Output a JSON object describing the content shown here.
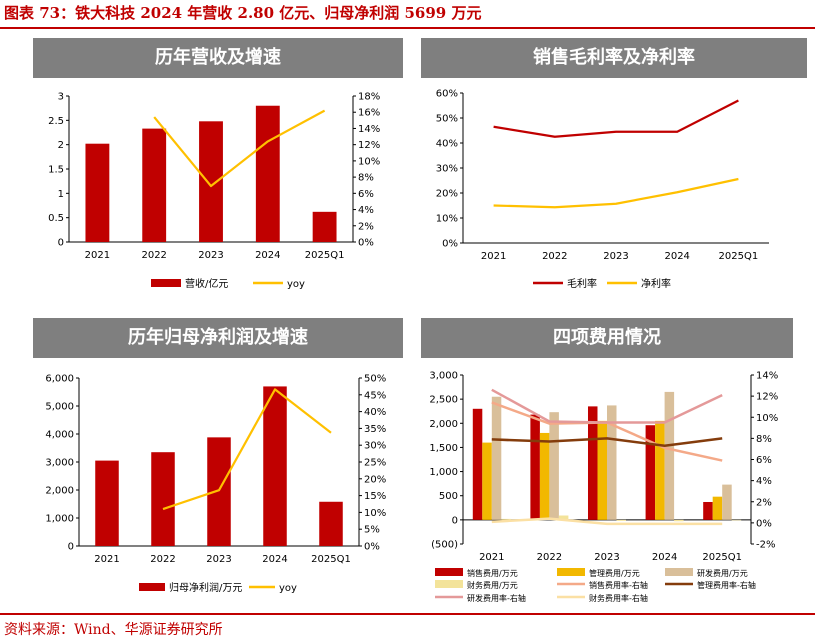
{
  "figure": {
    "title": "图表 73：铁大科技 2024 年营收 2.80 亿元、归母净利润 5699 万元",
    "source": "资料来源：Wind、华源证券研究所"
  },
  "chart_data": [
    {
      "id": "revenue",
      "type": "bar",
      "title": "历年营收及增速",
      "categories": [
        "2021",
        "2022",
        "2023",
        "2024",
        "2025Q1"
      ],
      "series": [
        {
          "name": "营收/亿元",
          "kind": "bar",
          "axis": "left",
          "color": "#c00000",
          "values": [
            2.02,
            2.33,
            2.48,
            2.8,
            0.62
          ]
        },
        {
          "name": "yoy",
          "kind": "line",
          "axis": "right",
          "color": "#ffc000",
          "values": [
            null,
            15.4,
            6.9,
            12.4,
            16.2
          ]
        }
      ],
      "y_left": {
        "min": 0,
        "max": 3,
        "ticks": [
          "0",
          "0.5",
          "1",
          "1.5",
          "2",
          "2.5",
          "3"
        ]
      },
      "y_right": {
        "min": 0,
        "max": 18,
        "ticks": [
          "0%",
          "2%",
          "4%",
          "6%",
          "8%",
          "10%",
          "12%",
          "14%",
          "16%",
          "18%"
        ]
      },
      "legend": "bottom",
      "grid": false
    },
    {
      "id": "margin",
      "type": "line",
      "title": "销售毛利率及净利率",
      "categories": [
        "2021",
        "2022",
        "2023",
        "2024",
        "2025Q1"
      ],
      "series": [
        {
          "name": "毛利率",
          "kind": "line",
          "axis": "left",
          "color": "#c00000",
          "values": [
            46.5,
            42.5,
            44.5,
            44.5,
            57.0
          ]
        },
        {
          "name": "净利率",
          "kind": "line",
          "axis": "left",
          "color": "#ffc000",
          "values": [
            15.0,
            14.3,
            15.7,
            20.3,
            25.6
          ]
        }
      ],
      "y_left": {
        "min": 0,
        "max": 60,
        "ticks": [
          "0%",
          "10%",
          "20%",
          "30%",
          "40%",
          "50%",
          "60%"
        ]
      },
      "legend": "bottom",
      "grid": false
    },
    {
      "id": "profit",
      "type": "bar",
      "title": "历年归母净利润及增速",
      "categories": [
        "2021",
        "2022",
        "2023",
        "2024",
        "2025Q1"
      ],
      "series": [
        {
          "name": "归母净利润/万元",
          "kind": "bar",
          "axis": "left",
          "color": "#c00000",
          "values": [
            3050,
            3350,
            3880,
            5699,
            1580
          ]
        },
        {
          "name": "yoy",
          "kind": "line",
          "axis": "right",
          "color": "#ffc000",
          "values": [
            null,
            11.0,
            16.6,
            46.6,
            33.7
          ]
        }
      ],
      "y_left": {
        "min": 0,
        "max": 6000,
        "ticks": [
          "0",
          "1,000",
          "2,000",
          "3,000",
          "4,000",
          "5,000",
          "6,000"
        ]
      },
      "y_right": {
        "min": 0,
        "max": 50,
        "ticks": [
          "0%",
          "5%",
          "10%",
          "15%",
          "20%",
          "25%",
          "30%",
          "35%",
          "40%",
          "45%",
          "50%"
        ]
      },
      "legend": "bottom",
      "grid": false
    },
    {
      "id": "expenses",
      "type": "bar",
      "title": "四项费用情况",
      "categories": [
        "2021",
        "2022",
        "2023",
        "2024",
        "2025Q1"
      ],
      "series": [
        {
          "name": "销售费用/万元",
          "kind": "bar",
          "axis": "left",
          "color": "#c00000",
          "values": [
            2300,
            2180,
            2350,
            1960,
            370
          ]
        },
        {
          "name": "管理费用/万元",
          "kind": "bar",
          "axis": "left",
          "color": "#f2b800",
          "values": [
            1600,
            1800,
            2050,
            2050,
            480
          ]
        },
        {
          "name": "研发费用/万元",
          "kind": "bar",
          "axis": "left",
          "color": "#d9bf9a",
          "values": [
            2550,
            2230,
            2370,
            2650,
            730
          ]
        },
        {
          "name": "财务费用/万元",
          "kind": "bar",
          "axis": "left",
          "color": "#f3e39a",
          "values": [
            20,
            90,
            -20,
            -30,
            -10
          ]
        },
        {
          "name": "销售费用率-右轴",
          "kind": "line",
          "axis": "right",
          "color": "#f4a988",
          "values": [
            11.4,
            9.4,
            9.5,
            7.1,
            5.9
          ]
        },
        {
          "name": "管理费用率-右轴",
          "kind": "line",
          "axis": "right",
          "color": "#843c0c",
          "values": [
            7.9,
            7.7,
            8.0,
            7.3,
            8.0
          ]
        },
        {
          "name": "研发费用率-右轴",
          "kind": "line",
          "axis": "right",
          "color": "#e49999",
          "values": [
            12.6,
            9.6,
            9.5,
            9.5,
            12.1
          ]
        },
        {
          "name": "财务费用率-右轴",
          "kind": "line",
          "axis": "right",
          "color": "#fbe0a4",
          "values": [
            0.1,
            0.4,
            -0.1,
            -0.1,
            -0.1
          ]
        }
      ],
      "y_left": {
        "min": -500,
        "max": 3000,
        "ticks": [
          "(500)",
          "0",
          "500",
          "1,000",
          "1,500",
          "2,000",
          "2,500",
          "3,000"
        ]
      },
      "y_right": {
        "min": -2,
        "max": 14,
        "ticks": [
          "-2%",
          "0%",
          "2%",
          "4%",
          "6%",
          "8%",
          "10%",
          "12%",
          "14%"
        ]
      },
      "legend": "bottom",
      "grid": false
    }
  ]
}
